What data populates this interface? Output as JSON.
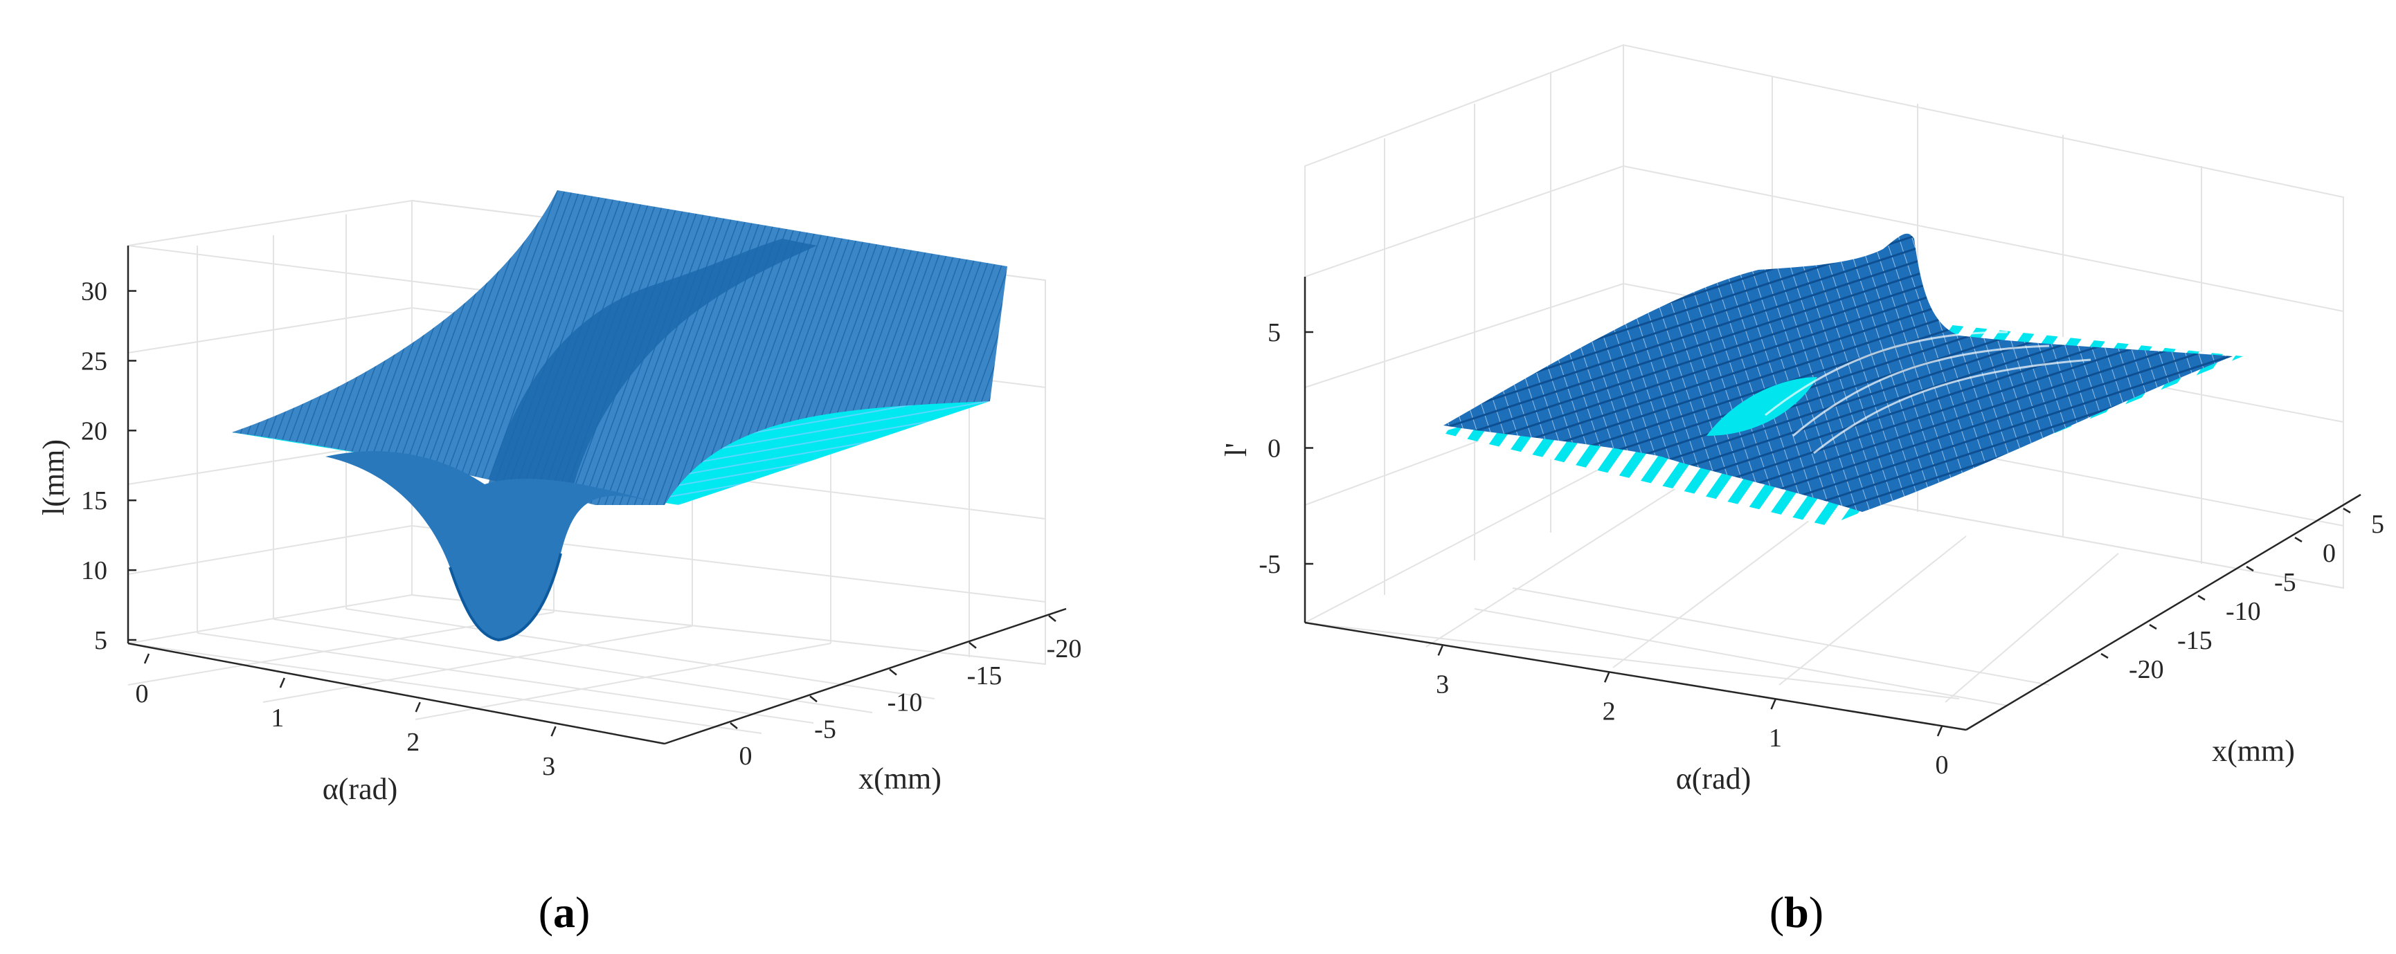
{
  "chart_data": [
    {
      "type": "surface",
      "panel_label": "a",
      "xlabel": "α(rad)",
      "ylabel": "x(mm)",
      "zlabel": "l(mm)",
      "alpha_ticks": [
        "0",
        "1",
        "2",
        "3"
      ],
      "x_ticks": [
        "0",
        "-5",
        "-10",
        "-15",
        "-20"
      ],
      "z_ticks": [
        "5",
        "10",
        "15",
        "20",
        "25",
        "30"
      ],
      "alpha_range": [
        0,
        3.14
      ],
      "x_range": [
        -20,
        0
      ],
      "z_range": [
        5,
        33
      ],
      "grid": true,
      "series": [
        {
          "name": "",
          "color": "#2f7fc1",
          "kind": "curved surface"
        },
        {
          "name": "",
          "color": "#00e5ee",
          "kind": "flat plane",
          "z": 20
        }
      ]
    },
    {
      "type": "surface",
      "panel_label": "b",
      "xlabel": "α(rad)",
      "ylabel": "x(mm)",
      "zlabel": "l'",
      "alpha_ticks": [
        "3",
        "2",
        "1",
        "0"
      ],
      "x_ticks": [
        "5",
        "0",
        "-5",
        "-10",
        "-15",
        "-20"
      ],
      "z_ticks": [
        "5",
        "0",
        "-5"
      ],
      "alpha_range": [
        0,
        3.14
      ],
      "x_range": [
        -20,
        5
      ],
      "z_range": [
        -7,
        7
      ],
      "grid": true,
      "series": [
        {
          "name": "",
          "color": "#1565b0",
          "kind": "curved surface"
        },
        {
          "name": "",
          "color": "#00e5ee",
          "kind": "flat plane",
          "z": 0
        }
      ]
    }
  ],
  "colors": {
    "surface_a": "#2f7fc1",
    "surface_b": "#1565b0",
    "plane": "#00e5ee",
    "grid": "#e3e3e3",
    "axis": "#262626"
  }
}
